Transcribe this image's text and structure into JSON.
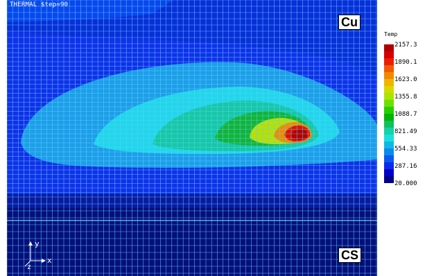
{
  "viewport": {
    "step_title": "THERMAL $tep=90",
    "material_top": "Cu",
    "material_bottom": "CS",
    "axes": {
      "y": "y",
      "x": "x",
      "z": "z"
    }
  },
  "legend": {
    "title": "Temp",
    "ticks": [
      "2157.3",
      "1890.1",
      "1623.0",
      "1355.8",
      "1088.7",
      "821.49",
      "554.33",
      "287.16",
      "20.000"
    ],
    "colors": [
      "#b00000",
      "#d60000",
      "#ef1c00",
      "#f25a00",
      "#f08a00",
      "#f0b400",
      "#d8d800",
      "#a8e600",
      "#6ee000",
      "#26d000",
      "#00b400",
      "#12c060",
      "#16d2a6",
      "#19e0e0",
      "#10b8e6",
      "#0a8cee",
      "#0a5af0",
      "#0a2af0",
      "#0000c8",
      "#00008c"
    ]
  },
  "palette": {
    "background": "#1230e8",
    "mesh": "#5ad2ff"
  }
}
